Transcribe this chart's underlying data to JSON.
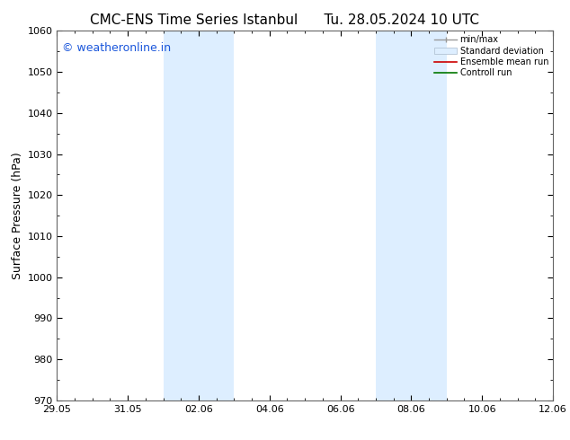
{
  "title_left": "CMC-ENS Time Series Istanbul",
  "title_right": "Tu. 28.05.2024 10 UTC",
  "ylabel": "Surface Pressure (hPa)",
  "xlabel": "",
  "ylim": [
    970,
    1060
  ],
  "yticks": [
    970,
    980,
    990,
    1000,
    1010,
    1020,
    1030,
    1040,
    1050,
    1060
  ],
  "xtick_labels": [
    "29.05",
    "31.05",
    "02.06",
    "04.06",
    "06.06",
    "08.06",
    "10.06",
    "12.06"
  ],
  "xtick_positions": [
    0,
    2,
    4,
    6,
    8,
    10,
    12,
    14
  ],
  "xlim": [
    0,
    14
  ],
  "shaded_bands": [
    {
      "x_start": 3.0,
      "x_end": 4.0,
      "color": "#ddeeff"
    },
    {
      "x_start": 4.0,
      "x_end": 5.0,
      "color": "#ddeeff"
    },
    {
      "x_start": 9.0,
      "x_end": 10.0,
      "color": "#ddeeff"
    },
    {
      "x_start": 10.0,
      "x_end": 11.0,
      "color": "#ddeeff"
    }
  ],
  "watermark_text": "© weatheronline.in",
  "watermark_color": "#1a56db",
  "watermark_fontsize": 9,
  "legend_labels": [
    "min/max",
    "Standard deviation",
    "Ensemble mean run",
    "Controll run"
  ],
  "legend_colors_line": [
    "#999999",
    "#cccccc",
    "#cc0000",
    "#007700"
  ],
  "background_color": "#ffffff",
  "title_fontsize": 11,
  "ylabel_fontsize": 9,
  "tick_fontsize": 8,
  "minor_tick_count": 4
}
